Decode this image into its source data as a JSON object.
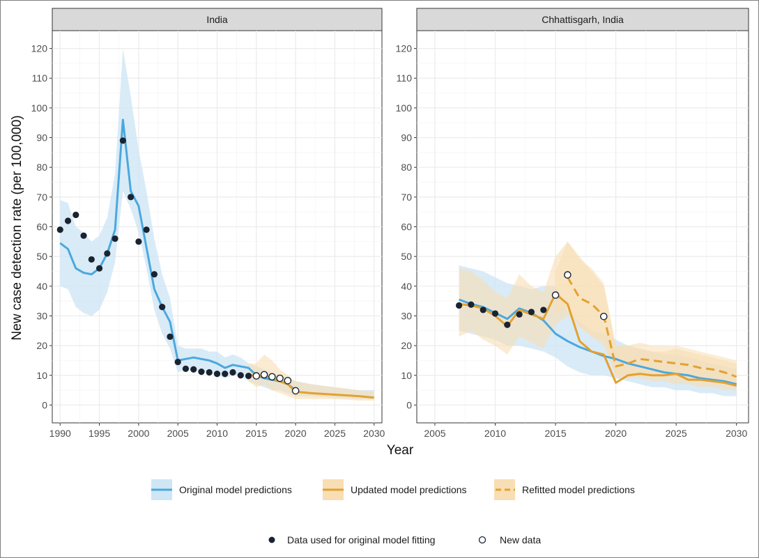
{
  "chart_data": {
    "type": "line",
    "ylabel": "New case detection rate (per 100,000)",
    "xlabel": "Year",
    "colors": {
      "original": "#4aa8de",
      "original_band": "#cfe6f5",
      "updated": "#e4a12e",
      "updated_band": "#f8deb4",
      "points": "#1a2330",
      "panel_header": "#dcdcdc",
      "grid": "#ebebeb"
    },
    "panels": [
      {
        "title": "India",
        "xlim": [
          1989,
          2031
        ],
        "ylim": [
          -6,
          126
        ],
        "xticks": [
          1990,
          1995,
          2000,
          2005,
          2010,
          2015,
          2020,
          2025,
          2030
        ],
        "yticks": [
          0,
          10,
          20,
          30,
          40,
          50,
          60,
          70,
          80,
          90,
          100,
          110,
          120
        ],
        "original_band": {
          "x": [
            1990,
            1991,
            1992,
            1993,
            1994,
            1995,
            1996,
            1997,
            1998,
            1999,
            2000,
            2001,
            2002,
            2003,
            2004,
            2005,
            2006,
            2007,
            2008,
            2009,
            2010,
            2011,
            2012,
            2013,
            2014,
            2015,
            2016,
            2017,
            2018,
            2019,
            2020,
            2022,
            2025,
            2028,
            2030
          ],
          "lower": [
            40,
            39,
            33,
            31,
            30,
            32,
            38,
            48,
            72,
            66,
            58,
            46,
            32,
            24,
            19,
            11,
            12,
            12,
            11,
            11,
            10,
            9,
            10,
            10,
            8,
            7,
            6,
            5,
            5,
            4,
            3,
            3,
            2.5,
            2,
            2
          ],
          "upper": [
            69,
            68,
            60,
            58,
            55,
            57,
            63,
            78,
            120,
            104,
            86,
            72,
            56,
            44,
            36,
            20,
            19,
            19,
            19,
            18,
            18,
            16,
            17,
            16,
            14,
            13,
            12,
            11,
            10,
            9,
            8,
            7,
            6,
            5,
            5
          ]
        },
        "original_line": {
          "x": [
            1990,
            1991,
            1992,
            1993,
            1994,
            1995,
            1996,
            1997,
            1998,
            1999,
            2000,
            2001,
            2002,
            2003,
            2004,
            2005,
            2006,
            2007,
            2008,
            2009,
            2010,
            2011,
            2012,
            2013,
            2014,
            2015,
            2016,
            2017,
            2018,
            2019,
            2020
          ],
          "y": [
            54.5,
            52.5,
            46,
            44.5,
            44,
            46,
            51,
            59,
            96,
            72,
            67,
            53,
            39,
            33,
            28,
            15,
            15.5,
            16,
            15.5,
            15,
            14,
            12.5,
            13.5,
            13,
            12.5,
            10,
            9,
            8.5,
            8,
            7,
            5
          ]
        },
        "updated_band": {
          "x": [
            2014,
            2015,
            2016,
            2017,
            2018,
            2019,
            2020,
            2022,
            2025,
            2028,
            2030
          ],
          "lower": [
            8,
            6,
            7,
            5,
            4,
            3,
            2,
            2,
            2,
            1.5,
            1.5
          ],
          "upper": [
            14,
            14,
            17,
            15,
            12,
            10,
            8,
            7,
            6,
            5,
            4.5
          ]
        },
        "updated_line": {
          "x": [
            2014,
            2015,
            2016,
            2017,
            2018,
            2019,
            2020,
            2022,
            2025,
            2028,
            2030
          ],
          "y": [
            10.5,
            9.5,
            10,
            9,
            8,
            7,
            4.5,
            4,
            3.5,
            3,
            2.5
          ]
        },
        "fitted_points": {
          "x": [
            1990,
            1991,
            1992,
            1993,
            1994,
            1995,
            1996,
            1997,
            1998,
            1999,
            2000,
            2001,
            2002,
            2003,
            2004,
            2005,
            2006,
            2007,
            2008,
            2009,
            2010,
            2011,
            2012,
            2013,
            2014
          ],
          "y": [
            59,
            62,
            64,
            57,
            49,
            46,
            51,
            56,
            89,
            70,
            55,
            59,
            44,
            33,
            23,
            14.5,
            12.2,
            12,
            11.2,
            11,
            10.5,
            10.5,
            11,
            10,
            9.8
          ]
        },
        "new_points": {
          "x": [
            2015,
            2016,
            2017,
            2018,
            2019,
            2020
          ],
          "y": [
            9.8,
            10.2,
            9.5,
            9,
            8.2,
            4.8
          ]
        }
      },
      {
        "title": "Chhattisgarh, India",
        "xlim": [
          2003.5,
          2031
        ],
        "ylim": [
          -6,
          126
        ],
        "xticks": [
          2005,
          2010,
          2015,
          2020,
          2025,
          2030
        ],
        "yticks": [
          0,
          10,
          20,
          30,
          40,
          50,
          60,
          70,
          80,
          90,
          100,
          110,
          120
        ],
        "original_band": {
          "x": [
            2007,
            2008,
            2009,
            2010,
            2011,
            2012,
            2013,
            2014,
            2015,
            2016,
            2017,
            2018,
            2019,
            2020,
            2021,
            2022,
            2023,
            2024,
            2025,
            2026,
            2027,
            2028,
            2029,
            2030
          ],
          "lower": [
            25,
            24,
            23,
            22,
            20,
            20,
            19,
            18,
            16,
            13,
            11,
            10,
            10,
            9,
            8,
            7,
            6,
            6,
            5,
            5,
            4,
            4,
            3,
            3
          ],
          "upper": [
            47,
            46,
            45,
            43,
            41,
            40,
            39,
            40,
            40,
            32,
            28,
            25,
            24,
            22,
            20,
            19,
            18,
            17,
            17,
            16,
            15,
            14,
            13,
            12
          ]
        },
        "original_line": {
          "x": [
            2007,
            2008,
            2009,
            2010,
            2011,
            2012,
            2013,
            2014,
            2015,
            2016,
            2017,
            2018,
            2019,
            2020,
            2021,
            2022,
            2023,
            2024,
            2025,
            2026,
            2027,
            2028,
            2029,
            2030
          ],
          "y": [
            35.5,
            34,
            33,
            31,
            29,
            32.5,
            31,
            28.5,
            24,
            21.5,
            19.5,
            18,
            16.5,
            15.5,
            14,
            13,
            12,
            11,
            10.5,
            10,
            9,
            8.5,
            8,
            7
          ]
        },
        "updated_band": {
          "x": [
            2007,
            2008,
            2009,
            2010,
            2011,
            2012,
            2013,
            2014,
            2015,
            2016,
            2017,
            2018,
            2019,
            2020,
            2021,
            2022,
            2023,
            2024,
            2025,
            2026,
            2027,
            2028,
            2029,
            2030
          ],
          "lower": [
            23,
            25,
            22,
            20,
            17,
            23,
            21,
            19,
            27,
            30,
            26,
            23,
            20,
            10,
            9,
            9,
            8,
            8,
            7,
            7,
            6,
            6,
            5,
            5
          ],
          "upper": [
            46,
            45,
            42,
            38,
            36,
            44,
            40,
            38,
            50,
            55,
            50,
            45,
            40,
            20,
            20,
            19,
            18,
            18,
            19,
            18,
            17,
            16,
            15,
            14
          ]
        },
        "updated_line": {
          "x": [
            2007,
            2008,
            2009,
            2010,
            2011,
            2012,
            2013,
            2014,
            2015,
            2016,
            2017,
            2018,
            2019,
            2020,
            2021,
            2022,
            2023,
            2024,
            2025,
            2026,
            2027,
            2028,
            2029,
            2030
          ],
          "y": [
            34,
            33.5,
            32.5,
            30,
            26.5,
            32,
            30.5,
            29,
            37.5,
            34,
            21.5,
            18,
            17,
            7.5,
            10,
            10.5,
            10,
            10,
            10.5,
            8.5,
            8.5,
            8,
            7.5,
            6.5
          ]
        },
        "refitted_line": {
          "x": [
            2016,
            2017,
            2018,
            2019,
            2020,
            2021,
            2022,
            2023,
            2024,
            2025,
            2026,
            2027,
            2028,
            2029,
            2030
          ],
          "y": [
            43,
            36,
            34,
            30,
            13,
            14,
            15.5,
            15,
            14.5,
            14,
            13.5,
            12.5,
            12,
            11,
            9.5
          ]
        },
        "refitted_band": {
          "x": [
            2015,
            2016,
            2017,
            2018,
            2019,
            2020,
            2021,
            2022,
            2023,
            2024,
            2025,
            2026,
            2027,
            2028,
            2029,
            2030
          ],
          "lower": [
            30,
            33,
            27,
            23,
            22,
            9,
            9,
            10,
            10,
            10,
            9,
            9,
            8,
            8,
            7,
            6
          ],
          "upper": [
            45,
            55,
            49,
            46,
            41,
            20,
            20,
            21,
            20,
            20,
            20,
            19,
            18,
            17,
            16,
            15
          ]
        },
        "fitted_points": {
          "x": [
            2007,
            2008,
            2009,
            2010,
            2011,
            2012,
            2013,
            2014
          ],
          "y": [
            33.5,
            33.8,
            32,
            30.8,
            27,
            30.5,
            31.3,
            32
          ]
        },
        "new_points": {
          "x": [
            2015,
            2016,
            2019
          ],
          "y": [
            37,
            43.8,
            29.8
          ]
        }
      }
    ],
    "legend": {
      "series": [
        "Original model predictions",
        "Updated model predictions",
        "Refitted model predictions"
      ],
      "points": [
        "Data used for original model fitting",
        "New data"
      ]
    }
  }
}
